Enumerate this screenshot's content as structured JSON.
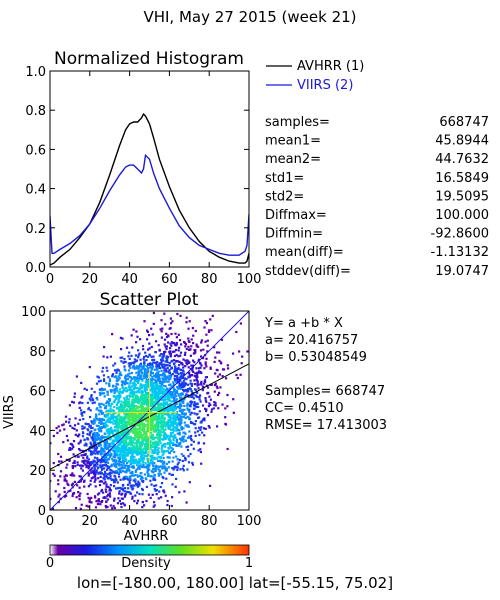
{
  "title": "VHI,  May 27 2015 (week 21)",
  "colors": {
    "avhrr": "#000000",
    "viirs": "#1a1ad8",
    "axis": "#000000"
  },
  "chart_data": [
    {
      "type": "line",
      "title": "Normalized Histogram",
      "xlabel": "",
      "ylabel": "",
      "xlim": [
        0,
        100
      ],
      "ylim": [
        0,
        1.0
      ],
      "x_ticks": [
        "0",
        "20",
        "40",
        "60",
        "80",
        "100"
      ],
      "y_ticks": [
        "0.0",
        "0.2",
        "0.4",
        "0.6",
        "0.8",
        "1.0"
      ],
      "grid": false,
      "legend_position": "right",
      "series": [
        {
          "name": "AVHRR (1)",
          "color": "#000000",
          "x": [
            0,
            2,
            5,
            10,
            15,
            20,
            25,
            30,
            35,
            38,
            40,
            42,
            44,
            46,
            47,
            48,
            50,
            52,
            55,
            60,
            65,
            70,
            75,
            80,
            85,
            90,
            95,
            98,
            99,
            100
          ],
          "y": [
            0.01,
            0.02,
            0.05,
            0.09,
            0.15,
            0.22,
            0.33,
            0.47,
            0.62,
            0.7,
            0.73,
            0.74,
            0.74,
            0.76,
            0.78,
            0.77,
            0.73,
            0.66,
            0.55,
            0.41,
            0.29,
            0.2,
            0.13,
            0.08,
            0.05,
            0.03,
            0.02,
            0.02,
            0.03,
            0.07
          ]
        },
        {
          "name": "VIIRS (2)",
          "color": "#1a1ad8",
          "x": [
            0,
            1,
            2,
            5,
            10,
            15,
            20,
            25,
            30,
            35,
            38,
            40,
            42,
            44,
            46,
            47,
            48,
            50,
            52,
            55,
            60,
            65,
            70,
            75,
            80,
            85,
            90,
            95,
            98,
            99,
            100
          ],
          "y": [
            0.26,
            0.07,
            0.07,
            0.09,
            0.12,
            0.16,
            0.22,
            0.3,
            0.39,
            0.47,
            0.51,
            0.52,
            0.52,
            0.5,
            0.48,
            0.5,
            0.57,
            0.55,
            0.48,
            0.4,
            0.3,
            0.21,
            0.15,
            0.11,
            0.09,
            0.07,
            0.06,
            0.06,
            0.08,
            0.11,
            0.27
          ]
        }
      ],
      "stats": [
        {
          "label": "samples=",
          "value": "668747"
        },
        {
          "label": "mean1=",
          "value": "45.8944"
        },
        {
          "label": "mean2=",
          "value": "44.7632"
        },
        {
          "label": "std1=",
          "value": "16.5849"
        },
        {
          "label": "std2=",
          "value": "19.5095"
        },
        {
          "label": "Diffmax=",
          "value": "100.000"
        },
        {
          "label": "Diffmin=",
          "value": "-92.8600"
        },
        {
          "label": "mean(diff)=",
          "value": "-1.13132"
        },
        {
          "label": "stddev(diff)=",
          "value": "19.0747"
        }
      ]
    },
    {
      "type": "scatter",
      "title": "Scatter Plot",
      "xlabel": "AVHRR",
      "ylabel": "VIIRS",
      "xlim": [
        0,
        100
      ],
      "ylim": [
        0,
        100
      ],
      "x_ticks": [
        "0",
        "20",
        "40",
        "60",
        "80",
        "100"
      ],
      "y_ticks": [
        "0",
        "20",
        "40",
        "60",
        "80",
        "100"
      ],
      "density_center": [
        46,
        44
      ],
      "density_spread": [
        16.6,
        19.5
      ],
      "correlation": 0.451,
      "regression": {
        "a": 20.416757,
        "b": 0.53048549
      },
      "annotations": [
        "Y= a +b * X",
        "a= 20.416757",
        "b= 0.53048549",
        "",
        "Samples= 668747",
        "CC=  0.4510",
        "RMSE= 17.413003"
      ],
      "colorbar": {
        "label": "Density",
        "min_label": "0",
        "max_label": "1"
      }
    }
  ],
  "footer": "lon=[-180.00, 180.00] lat=[-55.15, 75.02]"
}
